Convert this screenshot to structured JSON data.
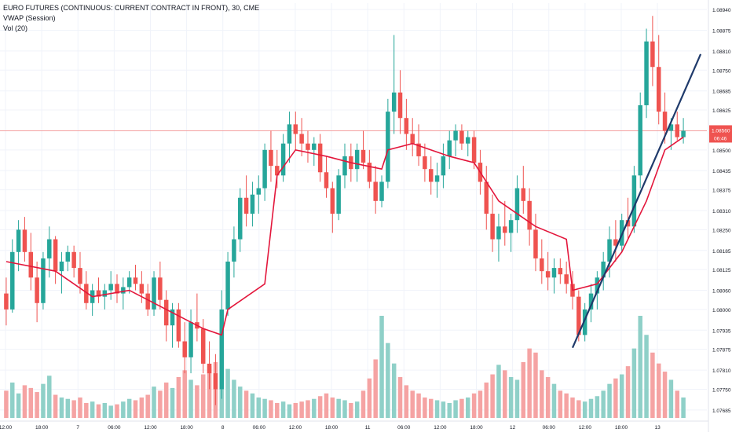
{
  "legend": {
    "title": "EURO FUTURES (CONTINUOUS: CURRENT CONTRACT IN FRONT), 30, CME",
    "indicator1": "VWAP (Session)",
    "indicator2": "Vol (20)"
  },
  "colors": {
    "up": "#26a69a",
    "down": "#ef5350",
    "vol_up": "#8fd0c8",
    "vol_down": "#f5a3a3",
    "vwap": "#e3163b",
    "trendline": "#1f3a6b",
    "price_line": "#f4a0a0",
    "grid": "#f0f3fa",
    "axis_text": "#131722"
  },
  "price_badge": {
    "value": "1.08560",
    "countdown": "06:46"
  },
  "chart_data": {
    "type": "candlestick",
    "y_axis": {
      "labels": [
        "1.08940",
        "1.08875",
        "1.08810",
        "1.08750",
        "1.08685",
        "1.08625",
        "1.08560",
        "1.08500",
        "1.08435",
        "1.08375",
        "1.08310",
        "1.08250",
        "1.08185",
        "1.08125",
        "1.08060",
        "1.08000",
        "1.07935",
        "1.07875",
        "1.07810",
        "1.07750",
        "1.07685"
      ],
      "range": [
        1.0766,
        1.0896
      ]
    },
    "x_axis": {
      "labels": [
        "12:00",
        "18:00",
        "7",
        "06:00",
        "12:00",
        "18:00",
        "8",
        "06:00",
        "12:00",
        "18:00",
        "11",
        "06:00",
        "12:00",
        "18:00",
        "12",
        "06:00",
        "12:00",
        "18:00",
        "13"
      ]
    },
    "last_price": 1.0856,
    "ohlc": [
      [
        1.0805,
        1.081,
        1.0795,
        1.08
      ],
      [
        1.08,
        1.0822,
        1.0799,
        1.0818
      ],
      [
        1.0818,
        1.0828,
        1.0812,
        1.0825
      ],
      [
        1.0825,
        1.0829,
        1.0815,
        1.0818
      ],
      [
        1.0818,
        1.0824,
        1.0806,
        1.081
      ],
      [
        1.081,
        1.0815,
        1.0796,
        1.0802
      ],
      [
        1.0802,
        1.0818,
        1.08,
        1.0816
      ],
      [
        1.0816,
        1.0826,
        1.081,
        1.0822
      ],
      [
        1.0822,
        1.0823,
        1.0808,
        1.0812
      ],
      [
        1.0812,
        1.0818,
        1.0805,
        1.0815
      ],
      [
        1.0815,
        1.082,
        1.0812,
        1.0818
      ],
      [
        1.0818,
        1.082,
        1.081,
        1.0813
      ],
      [
        1.0813,
        1.0818,
        1.0805,
        1.0808
      ],
      [
        1.0808,
        1.0812,
        1.08,
        1.0802
      ],
      [
        1.0802,
        1.0808,
        1.0798,
        1.0806
      ],
      [
        1.0806,
        1.081,
        1.0802,
        1.0804
      ],
      [
        1.0804,
        1.0808,
        1.08,
        1.0806
      ],
      [
        1.0806,
        1.0812,
        1.0803,
        1.0808
      ],
      [
        1.0808,
        1.0811,
        1.0802,
        1.0805
      ],
      [
        1.0805,
        1.081,
        1.08,
        1.0807
      ],
      [
        1.0807,
        1.0812,
        1.0805,
        1.081
      ],
      [
        1.081,
        1.0814,
        1.0806,
        1.0808
      ],
      [
        1.0808,
        1.0812,
        1.0802,
        1.0805
      ],
      [
        1.0805,
        1.0808,
        1.0798,
        1.08
      ],
      [
        1.08,
        1.0812,
        1.0798,
        1.081
      ],
      [
        1.081,
        1.0815,
        1.08,
        1.0803
      ],
      [
        1.0803,
        1.0806,
        1.079,
        1.0795
      ],
      [
        1.0795,
        1.0802,
        1.0788,
        1.08
      ],
      [
        1.08,
        1.0802,
        1.0788,
        1.079
      ],
      [
        1.079,
        1.0796,
        1.078,
        1.0785
      ],
      [
        1.0785,
        1.08,
        1.078,
        1.0796
      ],
      [
        1.0796,
        1.0805,
        1.079,
        1.0794
      ],
      [
        1.0794,
        1.0797,
        1.078,
        1.0783
      ],
      [
        1.0783,
        1.079,
        1.0775,
        1.078
      ],
      [
        1.078,
        1.0786,
        1.077,
        1.0775
      ],
      [
        1.0775,
        1.0806,
        1.0772,
        1.08
      ],
      [
        1.08,
        1.0818,
        1.0798,
        1.0815
      ],
      [
        1.0815,
        1.0826,
        1.081,
        1.0822
      ],
      [
        1.0822,
        1.0838,
        1.0818,
        1.0835
      ],
      [
        1.0835,
        1.0842,
        1.0826,
        1.083
      ],
      [
        1.083,
        1.084,
        1.0826,
        1.0836
      ],
      [
        1.0836,
        1.0842,
        1.083,
        1.0838
      ],
      [
        1.0838,
        1.0852,
        1.0834,
        1.085
      ],
      [
        1.085,
        1.0856,
        1.084,
        1.0845
      ],
      [
        1.0845,
        1.085,
        1.0838,
        1.0842
      ],
      [
        1.0842,
        1.0855,
        1.084,
        1.0852
      ],
      [
        1.0852,
        1.0862,
        1.0846,
        1.0858
      ],
      [
        1.0858,
        1.0862,
        1.085,
        1.0855
      ],
      [
        1.0855,
        1.086,
        1.0848,
        1.0852
      ],
      [
        1.0852,
        1.0856,
        1.0846,
        1.085
      ],
      [
        1.085,
        1.0854,
        1.0845,
        1.0852
      ],
      [
        1.0852,
        1.0855,
        1.084,
        1.0843
      ],
      [
        1.0843,
        1.0848,
        1.0835,
        1.0838
      ],
      [
        1.0838,
        1.084,
        1.0824,
        1.083
      ],
      [
        1.083,
        1.0844,
        1.0828,
        1.0842
      ],
      [
        1.0842,
        1.0852,
        1.0838,
        1.0848
      ],
      [
        1.0848,
        1.0852,
        1.084,
        1.0844
      ],
      [
        1.0844,
        1.0852,
        1.084,
        1.085
      ],
      [
        1.085,
        1.0856,
        1.0844,
        1.0846
      ],
      [
        1.0846,
        1.085,
        1.0838,
        1.084
      ],
      [
        1.084,
        1.0845,
        1.083,
        1.0834
      ],
      [
        1.0834,
        1.0842,
        1.0832,
        1.084
      ],
      [
        1.084,
        1.0866,
        1.0838,
        1.0862
      ],
      [
        1.0862,
        1.0886,
        1.0855,
        1.0868
      ],
      [
        1.0868,
        1.0875,
        1.0855,
        1.086
      ],
      [
        1.086,
        1.0866,
        1.085,
        1.0855
      ],
      [
        1.0855,
        1.086,
        1.0848,
        1.0852
      ],
      [
        1.0852,
        1.0858,
        1.0845,
        1.0848
      ],
      [
        1.0848,
        1.0852,
        1.084,
        1.0844
      ],
      [
        1.0844,
        1.0848,
        1.0836,
        1.084
      ],
      [
        1.084,
        1.0846,
        1.0835,
        1.0842
      ],
      [
        1.0842,
        1.0852,
        1.0838,
        1.0848
      ],
      [
        1.0848,
        1.0856,
        1.0844,
        1.0853
      ],
      [
        1.0853,
        1.0858,
        1.0848,
        1.0856
      ],
      [
        1.0856,
        1.0858,
        1.085,
        1.0852
      ],
      [
        1.0852,
        1.0856,
        1.0848,
        1.0854
      ],
      [
        1.0854,
        1.0856,
        1.0844,
        1.0846
      ],
      [
        1.0846,
        1.085,
        1.0836,
        1.084
      ],
      [
        1.084,
        1.0845,
        1.0825,
        1.083
      ],
      [
        1.083,
        1.0836,
        1.0818,
        1.0822
      ],
      [
        1.0822,
        1.083,
        1.0815,
        1.0826
      ],
      [
        1.0826,
        1.0834,
        1.082,
        1.0824
      ],
      [
        1.0824,
        1.083,
        1.0818,
        1.0828
      ],
      [
        1.0828,
        1.0842,
        1.0824,
        1.0838
      ],
      [
        1.0838,
        1.0845,
        1.083,
        1.0834
      ],
      [
        1.0834,
        1.0838,
        1.082,
        1.0825
      ],
      [
        1.0825,
        1.083,
        1.0812,
        1.0816
      ],
      [
        1.0816,
        1.0822,
        1.0808,
        1.0812
      ],
      [
        1.0812,
        1.0818,
        1.0806,
        1.081
      ],
      [
        1.081,
        1.0816,
        1.0805,
        1.0813
      ],
      [
        1.0813,
        1.0816,
        1.0808,
        1.0811
      ],
      [
        1.0811,
        1.0815,
        1.0805,
        1.0808
      ],
      [
        1.0808,
        1.0812,
        1.08,
        1.0804
      ],
      [
        1.0804,
        1.0806,
        1.079,
        1.0792
      ],
      [
        1.0792,
        1.0802,
        1.079,
        1.08
      ],
      [
        1.08,
        1.0808,
        1.0796,
        1.0805
      ],
      [
        1.0805,
        1.0812,
        1.08,
        1.081
      ],
      [
        1.081,
        1.0818,
        1.0806,
        1.0815
      ],
      [
        1.0815,
        1.0826,
        1.081,
        1.0822
      ],
      [
        1.0822,
        1.0828,
        1.0815,
        1.082
      ],
      [
        1.082,
        1.083,
        1.0818,
        1.0828
      ],
      [
        1.0828,
        1.0835,
        1.0822,
        1.0826
      ],
      [
        1.0826,
        1.0845,
        1.0824,
        1.0842
      ],
      [
        1.0842,
        1.0868,
        1.0838,
        1.0864
      ],
      [
        1.0864,
        1.0888,
        1.086,
        1.0884
      ],
      [
        1.0884,
        1.0892,
        1.087,
        1.0876
      ],
      [
        1.0876,
        1.0886,
        1.0858,
        1.0862
      ],
      [
        1.0862,
        1.0868,
        1.0852,
        1.0856
      ],
      [
        1.0856,
        1.086,
        1.085,
        1.0858
      ],
      [
        1.0858,
        1.0862,
        1.0853,
        1.0854
      ],
      [
        1.0854,
        1.086,
        1.0852,
        1.0856
      ]
    ],
    "volume": [
      40,
      52,
      36,
      48,
      44,
      38,
      50,
      62,
      34,
      30,
      28,
      26,
      30,
      22,
      24,
      20,
      22,
      18,
      20,
      24,
      28,
      26,
      30,
      34,
      46,
      40,
      52,
      44,
      60,
      70,
      56,
      48,
      64,
      76,
      82,
      98,
      72,
      56,
      46,
      40,
      36,
      30,
      28,
      26,
      22,
      24,
      20,
      22,
      24,
      26,
      28,
      32,
      36,
      30,
      28,
      26,
      22,
      24,
      40,
      58,
      86,
      150,
      110,
      80,
      60,
      48,
      40,
      36,
      30,
      28,
      26,
      24,
      22,
      26,
      28,
      30,
      36,
      40,
      52,
      64,
      78,
      70,
      60,
      56,
      82,
      102,
      96,
      70,
      60,
      50,
      40,
      36,
      30,
      26,
      24,
      28,
      32,
      40,
      50,
      58,
      64,
      76,
      102,
      150,
      122,
      96,
      80,
      68,
      56,
      40,
      30
    ],
    "vwap_points": [
      [
        0,
        1.0815
      ],
      [
        8,
        1.0812
      ],
      [
        14,
        1.0804
      ],
      [
        20,
        1.0806
      ],
      [
        26,
        1.08
      ],
      [
        32,
        1.0794
      ],
      [
        35,
        1.0792
      ],
      [
        36,
        1.08
      ],
      [
        42,
        1.0808
      ],
      [
        44,
        1.0842
      ],
      [
        47,
        1.085
      ],
      [
        52,
        1.0848
      ],
      [
        56,
        1.0846
      ],
      [
        61,
        1.0844
      ],
      [
        62,
        1.085
      ],
      [
        66,
        1.0852
      ],
      [
        72,
        1.0848
      ],
      [
        76,
        1.0846
      ],
      [
        80,
        1.0834
      ],
      [
        86,
        1.0826
      ],
      [
        91,
        1.0822
      ],
      [
        92,
        1.0806
      ],
      [
        96,
        1.0808
      ],
      [
        100,
        1.0818
      ],
      [
        104,
        1.0834
      ],
      [
        107,
        1.085
      ],
      [
        110,
        1.0854
      ]
    ],
    "trendline": [
      [
        92,
        1.0788
      ],
      [
        110,
        1.088
      ]
    ],
    "price_line": 1.0856
  }
}
